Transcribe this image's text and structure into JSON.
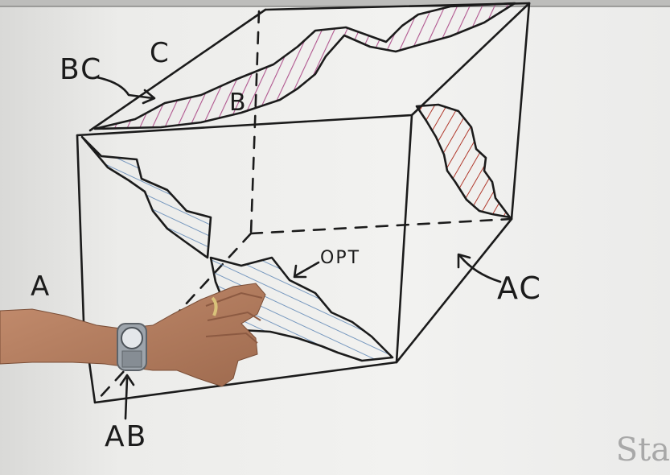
{
  "board": {
    "background": "#f1f1ef",
    "ink": "#1b1b1b",
    "hatch_colors": {
      "pink": "#b0568f",
      "blue": "#6a8fba",
      "red": "#b0382b"
    }
  },
  "labels": {
    "a": "A",
    "b": "B",
    "c": "C",
    "bc": "BC",
    "ac": "AC",
    "ab": "AB",
    "opt": "OPT"
  },
  "watermark": "Sta"
}
